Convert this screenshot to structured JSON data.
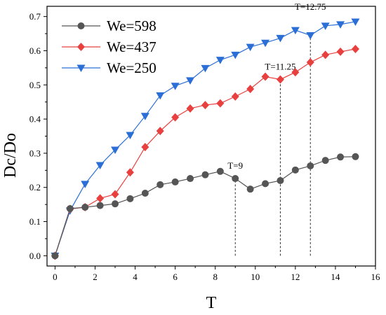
{
  "chart_data": {
    "type": "line",
    "xlabel": "T",
    "ylabel": "Dc/Do",
    "xlim": [
      -0.4,
      16
    ],
    "ylim": [
      -0.03,
      0.73
    ],
    "x_ticks": [
      0,
      2,
      4,
      6,
      8,
      10,
      12,
      14,
      16
    ],
    "y_ticks": [
      "0.0",
      "0.1",
      "0.2",
      "0.3",
      "0.4",
      "0.5",
      "0.6",
      "0.7"
    ],
    "grid": false,
    "legend_position": "top-left",
    "series": [
      {
        "name": "We=598",
        "marker": "circle",
        "color": "#555555",
        "x": [
          0,
          0.75,
          1.5,
          2.25,
          3.0,
          3.75,
          4.5,
          5.25,
          6.0,
          6.75,
          7.5,
          8.25,
          9.0,
          9.75,
          10.5,
          11.25,
          12.0,
          12.75,
          13.5,
          14.25,
          15.0
        ],
        "y": [
          0.0,
          0.138,
          0.142,
          0.147,
          0.152,
          0.167,
          0.183,
          0.208,
          0.216,
          0.226,
          0.237,
          0.247,
          0.226,
          0.195,
          0.211,
          0.22,
          0.251,
          0.263,
          0.279,
          0.289,
          0.29
        ]
      },
      {
        "name": "We=437",
        "marker": "diamond",
        "color": "#e8403f",
        "x": [
          0,
          0.75,
          1.5,
          2.25,
          3.0,
          3.75,
          4.5,
          5.25,
          6.0,
          6.75,
          7.5,
          8.25,
          9.0,
          9.75,
          10.5,
          11.25,
          12.0,
          12.75,
          13.5,
          14.25,
          15.0
        ],
        "y": [
          0.0,
          0.137,
          0.142,
          0.168,
          0.18,
          0.244,
          0.318,
          0.365,
          0.405,
          0.431,
          0.441,
          0.446,
          0.466,
          0.488,
          0.524,
          0.516,
          0.537,
          0.566,
          0.588,
          0.597,
          0.605
        ]
      },
      {
        "name": "We=250",
        "marker": "triangle-down",
        "color": "#2b6fd6",
        "x": [
          0,
          0.75,
          1.5,
          2.25,
          3.0,
          3.75,
          4.5,
          5.25,
          6.0,
          6.75,
          7.5,
          8.25,
          9.0,
          9.75,
          10.5,
          11.25,
          12.0,
          12.75,
          13.5,
          14.25,
          15.0
        ],
        "y": [
          0.0,
          0.132,
          0.21,
          0.265,
          0.31,
          0.353,
          0.409,
          0.469,
          0.497,
          0.513,
          0.549,
          0.573,
          0.588,
          0.611,
          0.623,
          0.637,
          0.66,
          0.645,
          0.673,
          0.677,
          0.685
        ]
      }
    ],
    "annotations": [
      {
        "label": "T=9",
        "x": 9.0,
        "y_bottom": 0.0,
        "y_top": 0.226,
        "text_y": 0.255
      },
      {
        "label": "T=11.25",
        "x": 11.25,
        "y_bottom": 0.0,
        "y_top": 0.516,
        "text_y": 0.545
      },
      {
        "label": "T=12.75",
        "x": 12.75,
        "y_bottom": 0.0,
        "y_top": 0.645,
        "text_y": 0.72
      }
    ]
  }
}
